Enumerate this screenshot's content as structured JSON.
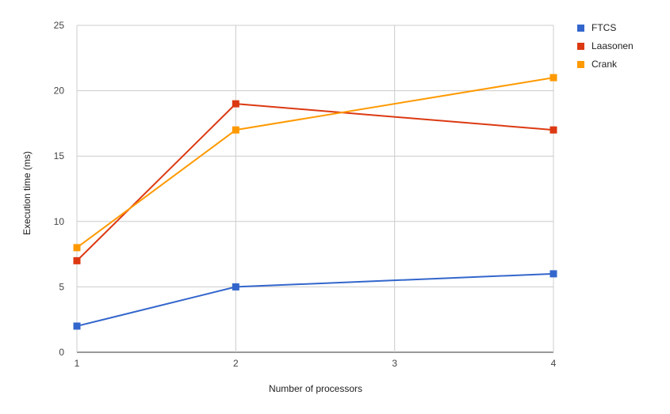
{
  "chart_data": {
    "type": "line",
    "title": "",
    "xlabel": "Number of processors",
    "ylabel": "Execution time (ms)",
    "x": [
      1,
      2,
      3,
      4
    ],
    "x_ticks": [
      "1",
      "2",
      "3",
      "4"
    ],
    "ylim": [
      0,
      25
    ],
    "y_ticks": [
      "0",
      "5",
      "10",
      "15",
      "20",
      "25"
    ],
    "grid": true,
    "legend_position": "right",
    "series": [
      {
        "name": "FTCS",
        "color": "#3366cc",
        "points": [
          [
            1,
            2
          ],
          [
            2,
            5
          ],
          [
            4,
            6
          ]
        ]
      },
      {
        "name": "Laasonen",
        "color": "#dc3912",
        "points": [
          [
            1,
            7
          ],
          [
            2,
            19
          ],
          [
            4,
            17
          ]
        ]
      },
      {
        "name": "Crank",
        "color": "#ff9900",
        "points": [
          [
            1,
            8
          ],
          [
            2,
            17
          ],
          [
            4,
            21
          ]
        ]
      }
    ]
  }
}
